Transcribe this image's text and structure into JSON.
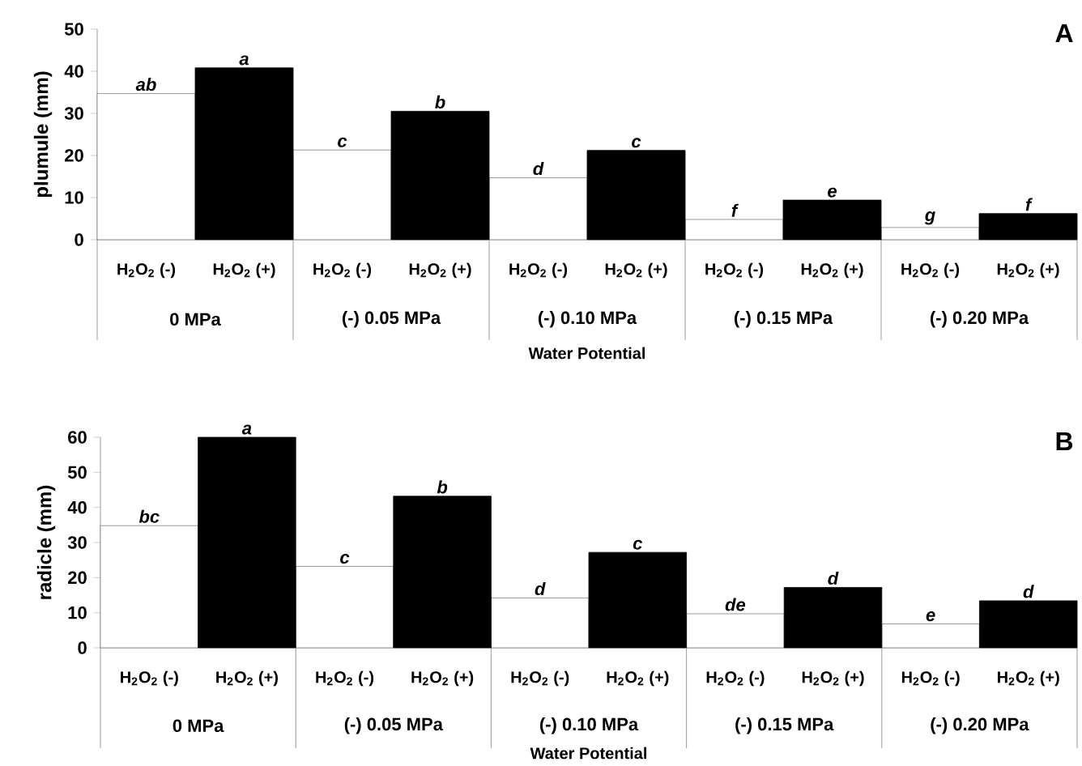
{
  "chart_data": [
    {
      "type": "bar",
      "title": "A",
      "xlabel": "Water Potential",
      "ylabel": "plumule (mm)",
      "categories": [
        "0 MPa",
        "(-) 0.05 MPa",
        "(-) 0.10 MPa",
        "(-) 0.15 MPa",
        "(-) 0.20 MPa"
      ],
      "ylim": [
        0,
        50
      ],
      "yticks": [
        0,
        10,
        20,
        30,
        40,
        50
      ],
      "legend": false,
      "series": [
        {
          "name": "H$_{2}$O$_{2}$ (-)",
          "color": "#ffffff",
          "values": [
            34.7,
            21.3,
            14.7,
            4.8,
            2.9
          ],
          "value_labels": [
            "ab",
            "c",
            "d",
            "f",
            "g"
          ]
        },
        {
          "name": "H$_{2}$O$_{2}$ (+)",
          "color": "#000000",
          "values": [
            40.8,
            30.5,
            21.2,
            9.4,
            6.2
          ],
          "value_labels": [
            "a",
            "b",
            "c",
            "e",
            "f"
          ]
        }
      ]
    },
    {
      "type": "bar",
      "title": "B",
      "xlabel": "Water Potential",
      "ylabel": "radicle (mm)",
      "categories": [
        "0 MPa",
        "(-) 0.05 MPa",
        "(-) 0.10 MPa",
        "(-) 0.15 MPa",
        "(-) 0.20 MPa"
      ],
      "ylim": [
        0,
        60
      ],
      "yticks": [
        0,
        10,
        20,
        30,
        40,
        50,
        60
      ],
      "legend": false,
      "series": [
        {
          "name": "H$_{2}$O$_{2}$ (-)",
          "color": "#ffffff",
          "values": [
            34.8,
            23.2,
            14.2,
            9.7,
            6.8
          ],
          "value_labels": [
            "bc",
            "c",
            "d",
            "de",
            "e"
          ]
        },
        {
          "name": "H$_{2}$O$_{2}$ (+)",
          "color": "#000000",
          "values": [
            60,
            43.2,
            27.2,
            17.2,
            13.4
          ],
          "value_labels": [
            "a",
            "b",
            "c",
            "d",
            "d"
          ]
        }
      ]
    }
  ]
}
